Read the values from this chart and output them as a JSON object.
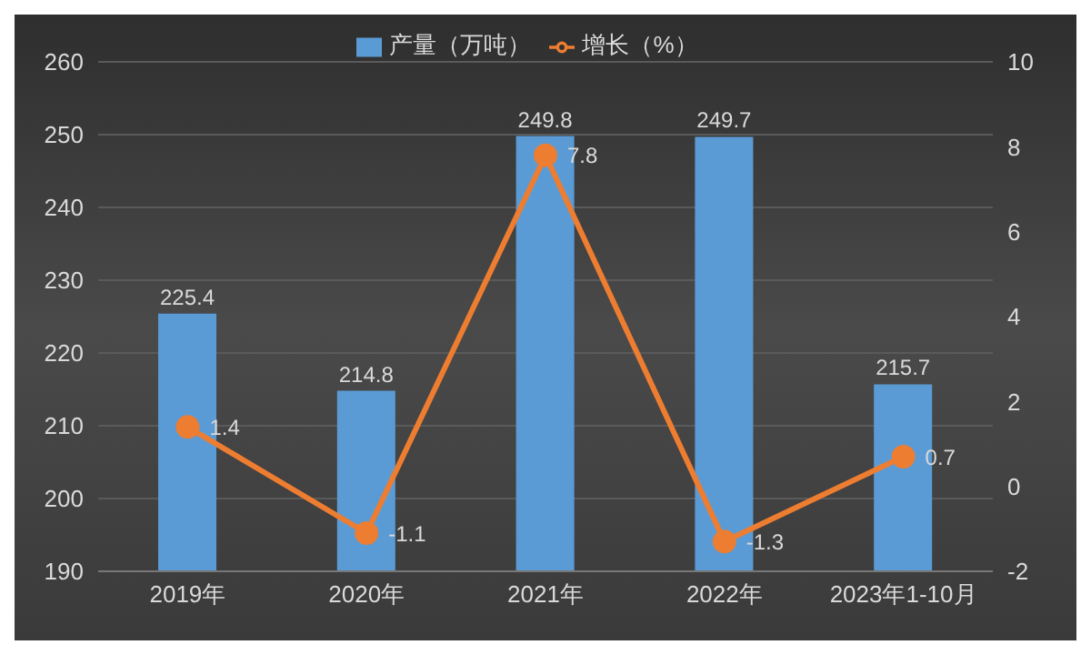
{
  "chart_data": {
    "type": "bar",
    "categories": [
      "2019年",
      "2020年",
      "2021年",
      "2022年",
      "2023年1-10月"
    ],
    "series": [
      {
        "name": "产量（万吨）",
        "color": "#5b9bd5",
        "values": [
          225.4,
          214.8,
          249.8,
          249.7,
          215.7
        ]
      },
      {
        "name": "增长（%）",
        "type": "line",
        "axis": "y2",
        "color": "#ed7d31",
        "values": [
          1.4,
          -1.1,
          7.8,
          -1.3,
          0.7
        ]
      }
    ],
    "ylim": [
      190,
      260
    ],
    "yticks": [
      190,
      200,
      210,
      220,
      230,
      240,
      250,
      260
    ],
    "y2lim": [
      -2,
      10
    ],
    "y2ticks": [
      -2,
      0,
      2,
      4,
      6,
      8,
      10
    ],
    "grid": "y",
    "legend": "top",
    "marker": "circle",
    "line_style": "solid",
    "data_labels": true
  }
}
